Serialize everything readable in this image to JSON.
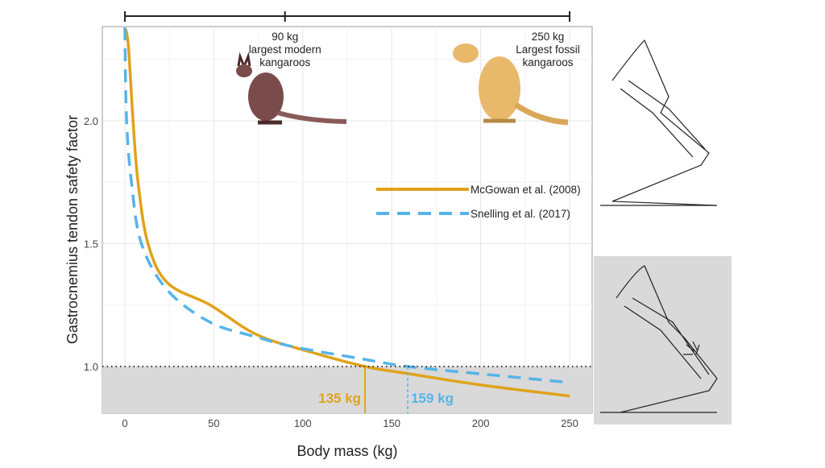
{
  "chart_data": {
    "type": "line",
    "title": "",
    "xlabel": "Body mass (kg)",
    "ylabel": "Gastrocnemius tendon safety factor",
    "xlim": [
      -12,
      263
    ],
    "ylim": [
      0.81,
      2.38
    ],
    "xticks": [
      "0",
      "50",
      "100",
      "150",
      "200",
      "250"
    ],
    "xtick_values": [
      0,
      50,
      100,
      150,
      200,
      250
    ],
    "yticks": [
      "1.0",
      "1.5",
      "2.0"
    ],
    "ytick_values": [
      1.0,
      1.5,
      2.0
    ],
    "grid": true,
    "legend_position": "right",
    "series": [
      {
        "name": "McGowan et al. (2008)",
        "color": "#E0A21A",
        "style": "solid",
        "x": [
          0,
          1.9,
          4.6,
          7.4,
          13,
          24,
          48,
          74,
          104,
          135,
          160,
          200,
          250
        ],
        "y": [
          2.38,
          2.31,
          2.0,
          1.75,
          1.5,
          1.34,
          1.25,
          1.13,
          1.06,
          1.0,
          0.97,
          0.925,
          0.88
        ]
      },
      {
        "name": "Snelling et al. (2017)",
        "color": "#56B4E9",
        "style": "dashed",
        "x": [
          0,
          0.9,
          3.7,
          9.3,
          24,
          48,
          74,
          95,
          134,
          159,
          200,
          250
        ],
        "y": [
          2.38,
          2.01,
          1.75,
          1.5,
          1.31,
          1.18,
          1.12,
          1.08,
          1.03,
          1.0,
          0.97,
          0.935
        ]
      }
    ],
    "reference_line": {
      "y": 1.0,
      "style": "dotted"
    },
    "shaded_region": {
      "y_below": 1.0,
      "color": "#D9D9D9"
    },
    "annotations": [
      {
        "text": "135 kg",
        "x": 135,
        "color": "#E0A21A"
      },
      {
        "text": "159 kg",
        "x": 159,
        "color": "#56B4E9"
      }
    ],
    "bracket": {
      "ticks": [
        0,
        90,
        250
      ]
    },
    "labels": [
      {
        "x": 90,
        "lines": [
          "90 kg",
          "largest modern",
          "kangaroos"
        ]
      },
      {
        "x": 250,
        "lines": [
          "250 kg",
          "Largest fossil",
          "kangaroos"
        ]
      }
    ]
  }
}
